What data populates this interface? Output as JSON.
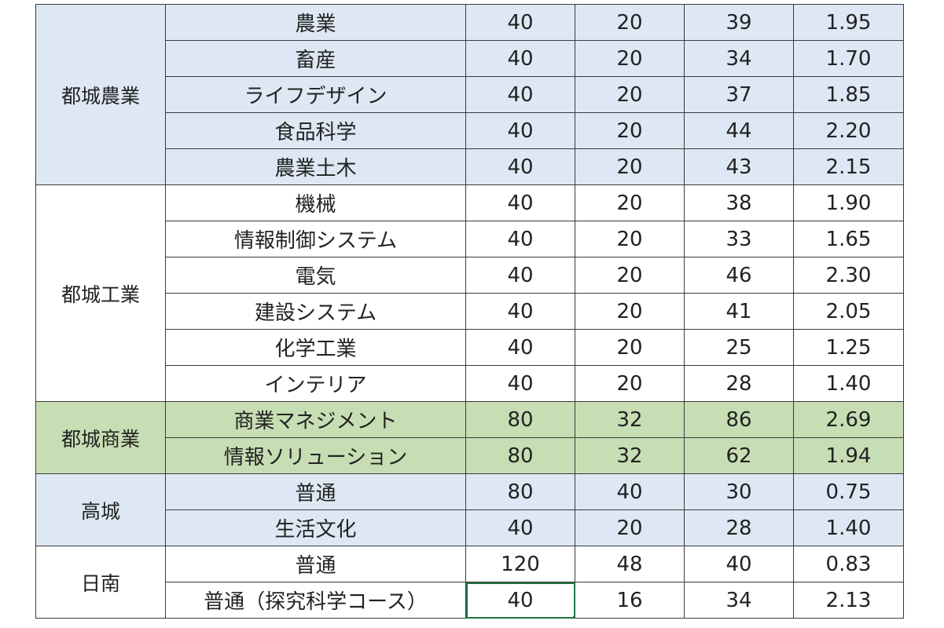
{
  "groups": [
    {
      "school": "都城農業",
      "shade": "blue",
      "rows": [
        {
          "dept": "農業",
          "a": "40",
          "b": "20",
          "c": "39",
          "d": "1.95"
        },
        {
          "dept": "畜産",
          "a": "40",
          "b": "20",
          "c": "34",
          "d": "1.70"
        },
        {
          "dept": "ライフデザイン",
          "a": "40",
          "b": "20",
          "c": "37",
          "d": "1.85"
        },
        {
          "dept": "食品科学",
          "a": "40",
          "b": "20",
          "c": "44",
          "d": "2.20"
        },
        {
          "dept": "農業土木",
          "a": "40",
          "b": "20",
          "c": "43",
          "d": "2.15"
        }
      ]
    },
    {
      "school": "都城工業",
      "shade": "white",
      "rows": [
        {
          "dept": "機械",
          "a": "40",
          "b": "20",
          "c": "38",
          "d": "1.90"
        },
        {
          "dept": "情報制御システム",
          "a": "40",
          "b": "20",
          "c": "33",
          "d": "1.65"
        },
        {
          "dept": "電気",
          "a": "40",
          "b": "20",
          "c": "46",
          "d": "2.30"
        },
        {
          "dept": "建設システム",
          "a": "40",
          "b": "20",
          "c": "41",
          "d": "2.05"
        },
        {
          "dept": "化学工業",
          "a": "40",
          "b": "20",
          "c": "25",
          "d": "1.25"
        },
        {
          "dept": "インテリア",
          "a": "40",
          "b": "20",
          "c": "28",
          "d": "1.40"
        }
      ]
    },
    {
      "school": "都城商業",
      "shade": "green",
      "rows": [
        {
          "dept": "商業マネジメント",
          "a": "80",
          "b": "32",
          "c": "86",
          "d": "2.69"
        },
        {
          "dept": "情報ソリューション",
          "a": "80",
          "b": "32",
          "c": "62",
          "d": "1.94"
        }
      ]
    },
    {
      "school": "高城",
      "shade": "blue",
      "rows": [
        {
          "dept": "普通",
          "a": "80",
          "b": "40",
          "c": "30",
          "d": "0.75"
        },
        {
          "dept": "生活文化",
          "a": "40",
          "b": "20",
          "c": "28",
          "d": "1.40"
        }
      ]
    },
    {
      "school": "日南",
      "shade": "white",
      "rows": [
        {
          "dept": "普通",
          "a": "120",
          "b": "48",
          "c": "40",
          "d": "0.83"
        },
        {
          "dept": "普通（探究科学コース）",
          "a": "40",
          "b": "16",
          "c": "34",
          "d": "2.13"
        }
      ]
    }
  ],
  "selection_accent": "#217346"
}
